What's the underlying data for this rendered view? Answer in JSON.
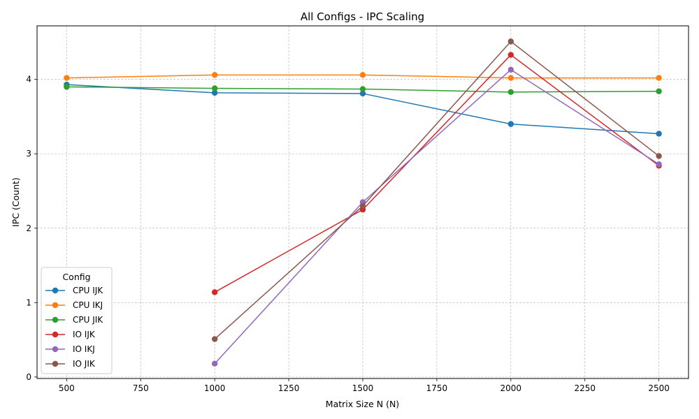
{
  "chart_data": {
    "type": "line",
    "title": "All Configs - IPC Scaling",
    "xlabel": "Matrix Size N (N)",
    "ylabel": "IPC (Count)",
    "xlim": [
      400,
      2600
    ],
    "ylim": [
      -0.02,
      4.72
    ],
    "xticks": [
      500,
      750,
      1000,
      1250,
      1500,
      1750,
      2000,
      2250,
      2500
    ],
    "yticks": [
      0,
      1,
      2,
      3,
      4
    ],
    "grid": true,
    "legend": {
      "title": "Config",
      "placement": "lower-left"
    },
    "series": [
      {
        "name": "CPU IJK",
        "color": "#1f77b4",
        "x": [
          500,
          1000,
          1500,
          2000,
          2500
        ],
        "y": [
          3.93,
          3.82,
          3.81,
          3.4,
          3.27
        ]
      },
      {
        "name": "CPU IKJ",
        "color": "#ff7f0e",
        "x": [
          500,
          1000,
          1500,
          2000,
          2500
        ],
        "y": [
          4.02,
          4.06,
          4.06,
          4.02,
          4.02
        ]
      },
      {
        "name": "CPU JIK",
        "color": "#2ca02c",
        "x": [
          500,
          1000,
          1500,
          2000,
          2500
        ],
        "y": [
          3.9,
          3.88,
          3.87,
          3.83,
          3.84
        ]
      },
      {
        "name": "IO IJK",
        "color": "#d62728",
        "x": [
          1000,
          1500,
          2000,
          2500
        ],
        "y": [
          1.14,
          2.25,
          4.33,
          2.84
        ]
      },
      {
        "name": "IO IKJ",
        "color": "#9467bd",
        "x": [
          1000,
          1500,
          2000,
          2500
        ],
        "y": [
          0.18,
          2.35,
          4.13,
          2.86
        ]
      },
      {
        "name": "IO JIK",
        "color": "#8c564b",
        "x": [
          1000,
          1500,
          2000,
          2500
        ],
        "y": [
          0.51,
          2.3,
          4.51,
          2.97
        ]
      }
    ]
  }
}
